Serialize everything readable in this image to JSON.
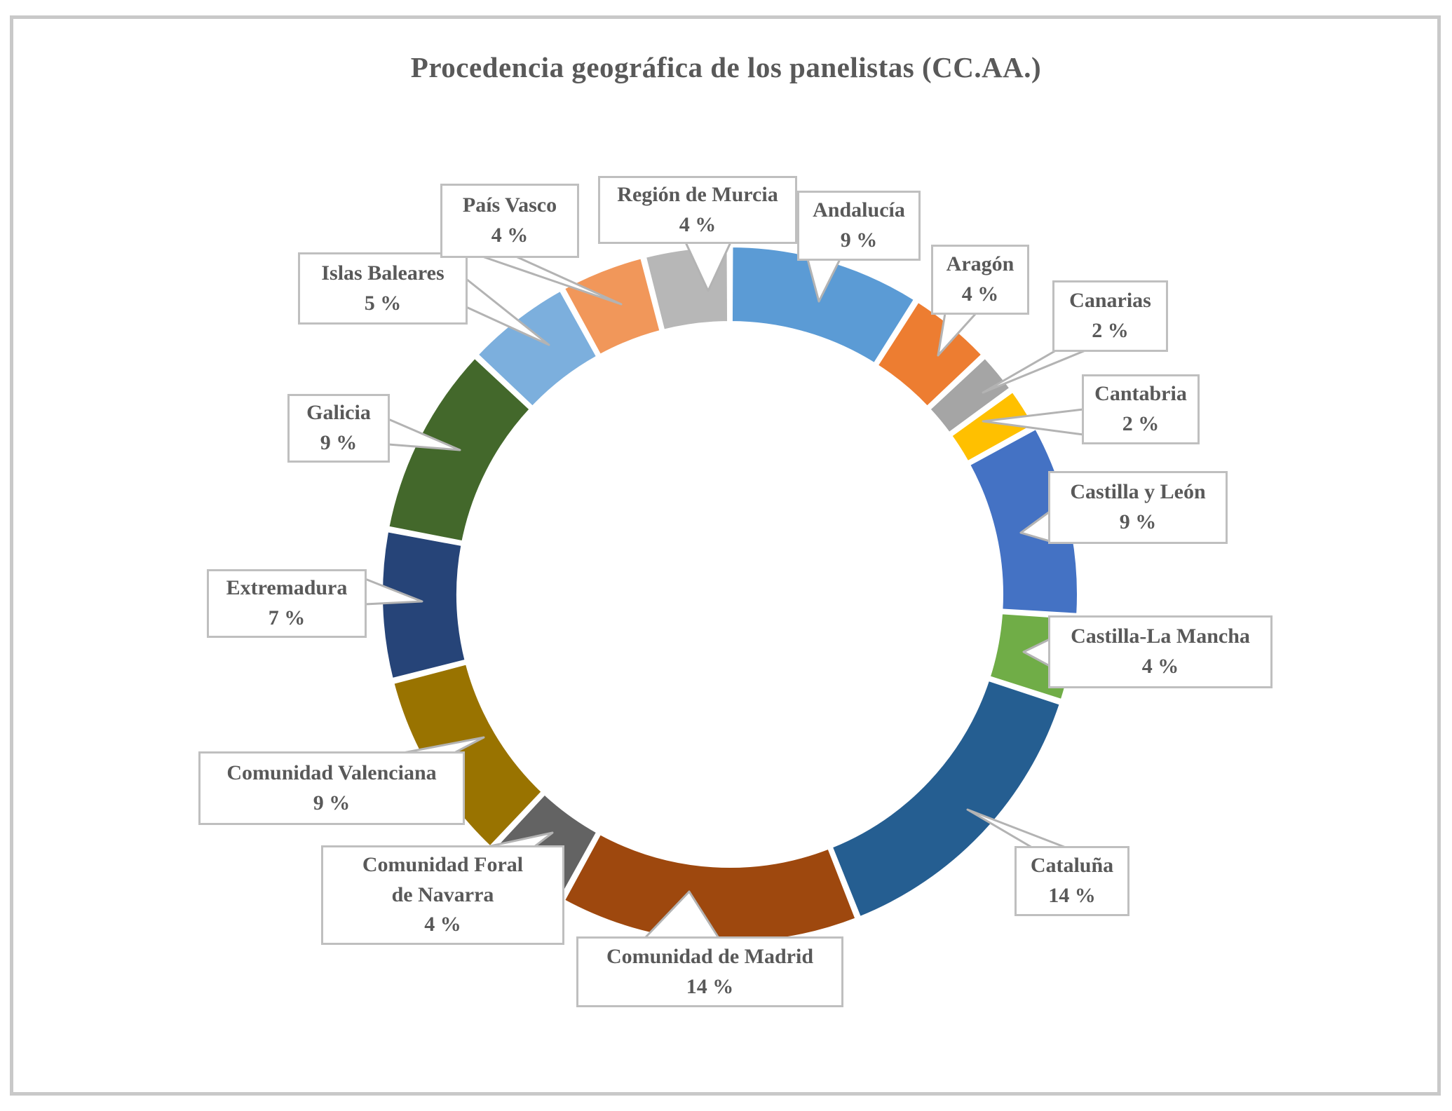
{
  "page": {
    "background": "#FFFFFF",
    "frame_border_color": "#C9C9C9"
  },
  "chart_data": {
    "type": "pie",
    "subtype": "doughnut",
    "title": "Procedencia geográfica de los panelistas (CC.AA.)",
    "title_color": "#595959",
    "label_color": "#595959",
    "callout_border_color": "#BFBFBF",
    "leader_line_color": "#B3B3B3",
    "segment_gap_color": "#FFFFFF",
    "hole_ratio": 0.78,
    "start_angle_deg": 0,
    "direction": "clockwise",
    "units": "%",
    "legend": "none",
    "segments": [
      {
        "name": "Andalucía",
        "value": 9,
        "pct_label": "9 %",
        "color": "#5B9BD5"
      },
      {
        "name": "Aragón",
        "value": 4,
        "pct_label": "4 %",
        "color": "#ED7D31"
      },
      {
        "name": "Canarias",
        "value": 2,
        "pct_label": "2 %",
        "color": "#A5A5A5"
      },
      {
        "name": "Cantabria",
        "value": 2,
        "pct_label": "2 %",
        "color": "#FFC000"
      },
      {
        "name": "Castilla y León",
        "value": 9,
        "pct_label": "9 %",
        "color": "#4472C4"
      },
      {
        "name": "Castilla-La Mancha",
        "value": 4,
        "pct_label": "4 %",
        "color": "#70AD47"
      },
      {
        "name": "Cataluña",
        "value": 14,
        "pct_label": "14 %",
        "color": "#255E91"
      },
      {
        "name": "Comunidad de Madrid",
        "value": 14,
        "pct_label": "14 %",
        "color": "#9E480E"
      },
      {
        "name": "Comunidad Foral de Navarra",
        "name_line1": "Comunidad Foral",
        "name_line2": "de Navarra",
        "value": 4,
        "pct_label": "4 %",
        "color": "#636363"
      },
      {
        "name": "Comunidad Valenciana",
        "value": 9,
        "pct_label": "9 %",
        "color": "#997300"
      },
      {
        "name": "Extremadura",
        "value": 7,
        "pct_label": "7 %",
        "color": "#264478"
      },
      {
        "name": "Galicia",
        "value": 9,
        "pct_label": "9 %",
        "color": "#43682B"
      },
      {
        "name": "Islas Baleares",
        "value": 5,
        "pct_label": "5 %",
        "color": "#7CAFDD"
      },
      {
        "name": "País Vasco",
        "value": 4,
        "pct_label": "4 %",
        "color": "#F1975A"
      },
      {
        "name": "Región de Murcia",
        "value": 4,
        "pct_label": "4 %",
        "color": "#B7B7B7"
      }
    ]
  }
}
